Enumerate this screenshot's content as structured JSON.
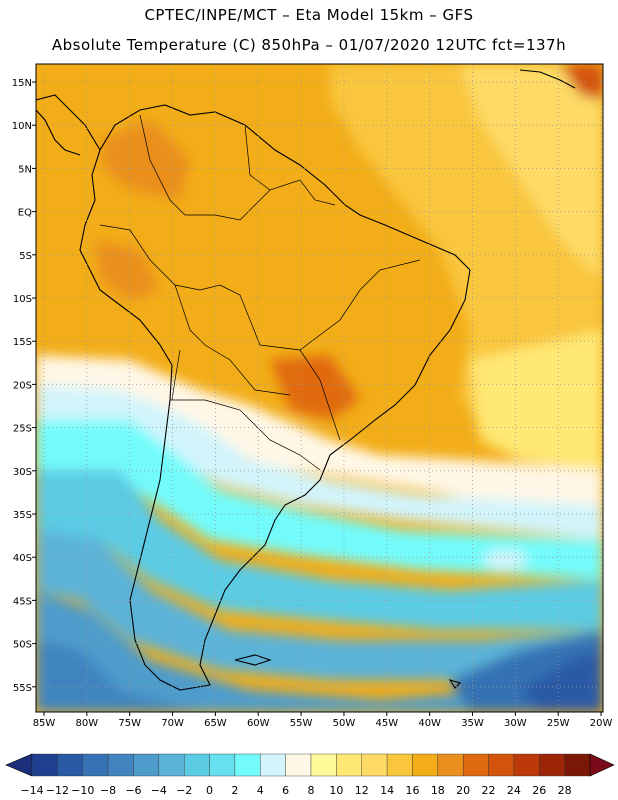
{
  "header": {
    "line1": "CPTEC/INPE/MCT –  Eta Model 15km – GFS",
    "line2": "Absolute Temperature (C) 850hPa – 01/07/2020 12UTC fct=137h"
  },
  "axes": {
    "lat_labels": [
      "15N",
      "10N",
      "5N",
      "EQ",
      "5S",
      "10S",
      "15S",
      "20S",
      "25S",
      "30S",
      "35S",
      "40S",
      "45S",
      "50S",
      "55S"
    ],
    "lon_labels": [
      "85W",
      "80W",
      "75W",
      "70W",
      "65W",
      "60W",
      "55W",
      "50W",
      "45W",
      "40W",
      "35W",
      "30W",
      "25W",
      "20W"
    ]
  },
  "colorbar": {
    "labels": [
      "-14",
      "-12",
      "-10",
      "-8",
      "-6",
      "-4",
      "-2",
      "0",
      "2",
      "4",
      "6",
      "8",
      "10",
      "12",
      "14",
      "16",
      "18",
      "20",
      "22",
      "24",
      "26",
      "28"
    ],
    "colors": [
      "#1f3f8f",
      "#2a5aa6",
      "#3672b4",
      "#4184bf",
      "#4e9ccc",
      "#5cb3d8",
      "#5ccbe4",
      "#66e0ee",
      "#73fbfb",
      "#d2f4fb",
      "#fff7e6",
      "#fff99a",
      "#ffe873",
      "#fddb66",
      "#f9c63c",
      "#f2ad18",
      "#ea8f1e",
      "#e06a10",
      "#d3520c",
      "#bc3a0a",
      "#9c2407",
      "#7b1705"
    ],
    "low_color": "#1b2f7a",
    "high_color": "#7b0a1a"
  }
}
